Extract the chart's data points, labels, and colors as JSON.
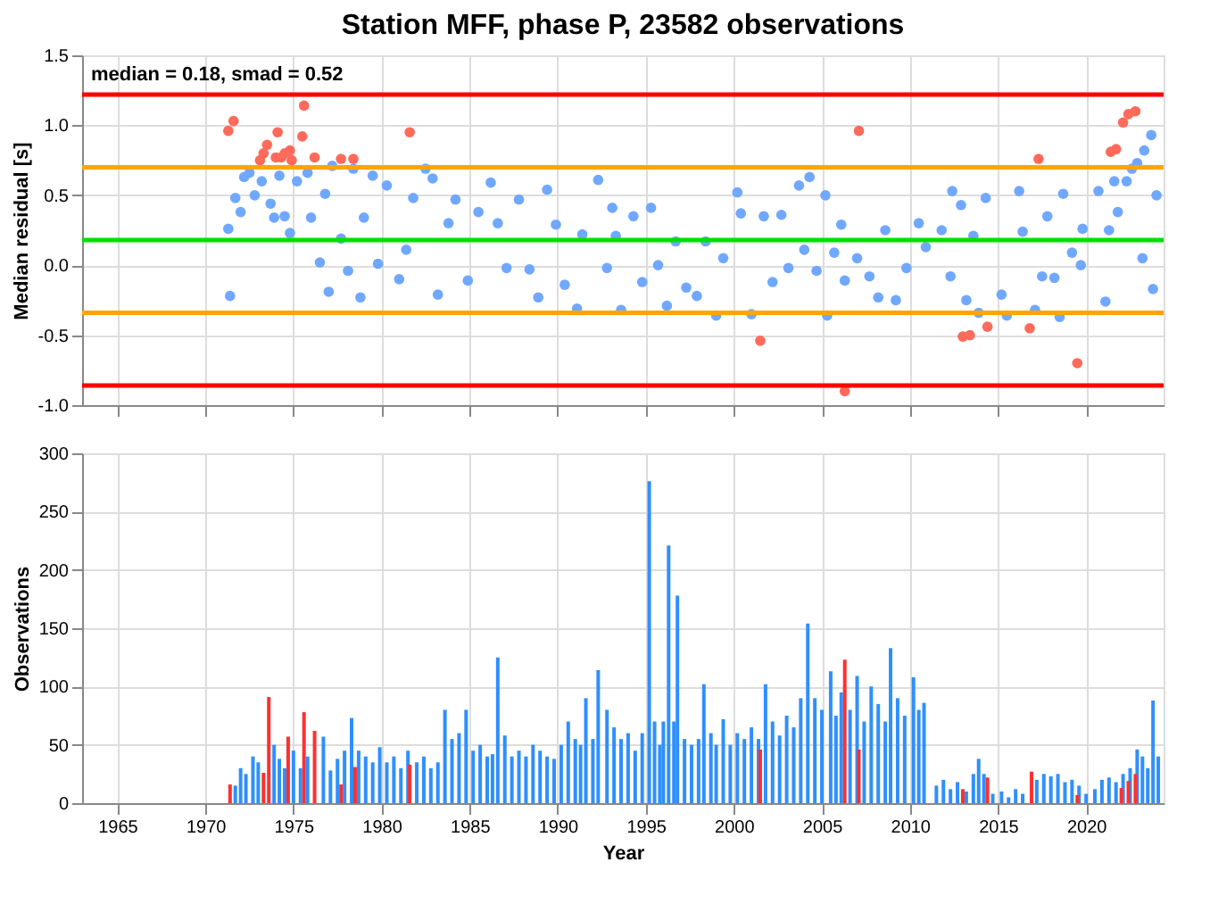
{
  "chart_data": [
    {
      "type": "scatter",
      "title": "Station MFF, phase P, 23582 observations",
      "ylabel": "Median residual [s]",
      "marker": "circle",
      "grid": true,
      "tick_labels": "y",
      "xlim": [
        1963,
        2024.4
      ],
      "ylim": [
        -1.0,
        1.5
      ],
      "xticks": [
        1965,
        1970,
        1975,
        1980,
        1985,
        1990,
        1995,
        2000,
        2005,
        2010,
        2015,
        2020
      ],
      "yticks": [
        {
          "value": -1.0,
          "label": "-1.0"
        },
        {
          "value": -0.5,
          "label": "-0.5"
        },
        {
          "value": 0,
          "label": "0.0"
        },
        {
          "value": 0.5,
          "label": "0.5"
        },
        {
          "value": 1.0,
          "label": "1.0"
        },
        {
          "value": 1.5,
          "label": "1.5"
        }
      ],
      "ref_lines": [
        {
          "axis": "y",
          "value": 1.22,
          "color": "#ff0000"
        },
        {
          "axis": "y",
          "value": 0.7,
          "color": "#ffa500"
        },
        {
          "axis": "y",
          "value": 0.18,
          "color": "#00e000"
        },
        {
          "axis": "y",
          "value": -0.34,
          "color": "#ffa500"
        },
        {
          "axis": "y",
          "value": -0.86,
          "color": "#ff0000"
        }
      ],
      "annotations": [
        "median = 0.18, smad = 0.52"
      ],
      "series": [
        {
          "color": "#70a8ff",
          "x": [
            1971.3,
            1971.4,
            1971.7,
            1972.0,
            1972.2,
            1972.5,
            1972.8,
            1973.2,
            1973.7,
            1973.9,
            1974.2,
            1974.5,
            1974.8,
            1975.2,
            1975.8,
            1976.0,
            1976.5,
            1976.8,
            1977.0,
            1977.2,
            1977.7,
            1978.1,
            1978.4,
            1978.8,
            1979.0,
            1979.5,
            1979.8,
            1980.3,
            1981.0,
            1981.4,
            1981.8,
            1982.5,
            1982.9,
            1983.2,
            1983.8,
            1984.2,
            1984.9,
            1985.5,
            1986.2,
            1986.6,
            1987.1,
            1987.8,
            1988.4,
            1988.9,
            1989.4,
            1989.9,
            1990.4,
            1991.1,
            1991.4,
            1992.3,
            1992.8,
            1993.1,
            1993.3,
            1993.6,
            1994.3,
            1994.8,
            1995.3,
            1995.7,
            1996.2,
            1996.7,
            1997.3,
            1997.9,
            1998.4,
            1999.0,
            1999.4,
            2000.2,
            2000.4,
            2001.0,
            2001.7,
            2002.2,
            2002.7,
            2003.1,
            2003.7,
            2004.0,
            2004.3,
            2004.7,
            2005.2,
            2005.3,
            2005.7,
            2006.1,
            2006.3,
            2007.0,
            2007.7,
            2008.2,
            2008.6,
            2009.2,
            2009.8,
            2010.5,
            2010.9,
            2011.8,
            2012.3,
            2012.4,
            2012.9,
            2013.2,
            2013.6,
            2013.9,
            2014.3,
            2015.2,
            2015.5,
            2016.2,
            2016.4,
            2017.1,
            2017.5,
            2017.8,
            2018.2,
            2018.5,
            2018.7,
            2019.2,
            2019.7,
            2019.8,
            2020.7,
            2021.1,
            2021.3,
            2021.6,
            2021.8,
            2022.3,
            2022.6,
            2022.9,
            2023.2,
            2023.3,
            2023.7,
            2023.8,
            2024.0
          ],
          "values": [
            0.26,
            -0.22,
            0.48,
            0.38,
            0.63,
            0.66,
            0.5,
            0.6,
            0.44,
            0.34,
            0.64,
            0.35,
            0.23,
            0.6,
            0.66,
            0.34,
            0.02,
            0.51,
            -0.19,
            0.71,
            0.19,
            -0.04,
            0.69,
            -0.23,
            0.34,
            0.64,
            0.01,
            0.57,
            -0.1,
            0.11,
            0.48,
            0.69,
            0.62,
            -0.21,
            0.3,
            0.47,
            -0.11,
            0.38,
            0.59,
            0.3,
            -0.02,
            0.47,
            -0.03,
            -0.23,
            0.54,
            0.29,
            -0.14,
            -0.31,
            0.22,
            0.61,
            -0.02,
            0.41,
            0.21,
            -0.32,
            0.35,
            -0.12,
            0.41,
            0.0,
            -0.29,
            0.17,
            -0.16,
            -0.22,
            0.17,
            -0.36,
            0.05,
            0.52,
            0.37,
            -0.35,
            0.35,
            -0.12,
            0.36,
            -0.02,
            0.57,
            0.11,
            0.63,
            -0.04,
            0.5,
            -0.36,
            0.09,
            0.29,
            -0.11,
            0.05,
            -0.08,
            -0.23,
            0.25,
            -0.25,
            -0.02,
            0.3,
            0.13,
            0.25,
            -0.08,
            0.53,
            0.43,
            -0.25,
            0.21,
            -0.34,
            0.48,
            -0.21,
            -0.36,
            0.53,
            0.24,
            -0.32,
            -0.08,
            0.35,
            -0.09,
            -0.37,
            0.51,
            0.09,
            0.0,
            0.26,
            0.53,
            -0.26,
            0.25,
            0.6,
            0.38,
            0.6,
            0.69,
            0.73,
            0.05,
            0.82,
            0.93,
            -0.17,
            0.5
          ]
        },
        {
          "color": "#ff6a5a",
          "x": [
            1971.3,
            1971.6,
            1973.1,
            1973.3,
            1973.5,
            1974.1,
            1974.0,
            1974.3,
            1974.5,
            1974.8,
            1974.9,
            1975.5,
            1975.6,
            1976.2,
            1977.7,
            1978.4,
            1981.6,
            2001.5,
            2007.1,
            2006.3,
            2013.0,
            2013.4,
            2014.4,
            2016.8,
            2017.3,
            2019.5,
            2021.4,
            2021.7,
            2022.1,
            2022.4,
            2022.8
          ],
          "values": [
            0.96,
            1.03,
            0.75,
            0.8,
            0.86,
            0.95,
            0.77,
            0.77,
            0.8,
            0.82,
            0.75,
            0.92,
            1.14,
            0.77,
            0.76,
            0.76,
            0.95,
            -0.54,
            0.96,
            -0.9,
            -0.51,
            -0.5,
            -0.44,
            -0.45,
            0.76,
            -0.7,
            0.81,
            0.83,
            1.02,
            1.08,
            1.1
          ]
        }
      ]
    },
    {
      "type": "bar",
      "xlabel": "Year",
      "ylabel": "Observations",
      "grid": true,
      "xlim": [
        1963,
        2024.4
      ],
      "ylim": [
        0,
        300
      ],
      "xticks": [
        1965,
        1970,
        1975,
        1980,
        1985,
        1990,
        1995,
        2000,
        2005,
        2010,
        2015,
        2020
      ],
      "yticks": [
        0,
        50,
        100,
        150,
        200,
        250,
        300
      ],
      "series": [
        {
          "color": "#2f8fff",
          "x": [
            1971.7,
            1972.0,
            1972.3,
            1972.7,
            1973.0,
            1973.4,
            1973.9,
            1974.2,
            1974.5,
            1975.0,
            1975.4,
            1975.8,
            1976.2,
            1976.7,
            1977.1,
            1977.5,
            1977.9,
            1978.3,
            1978.7,
            1979.1,
            1979.5,
            1979.9,
            1980.3,
            1980.7,
            1981.1,
            1981.5,
            1982.0,
            1982.4,
            1982.8,
            1983.2,
            1983.6,
            1984.0,
            1984.4,
            1984.8,
            1985.2,
            1985.6,
            1986.0,
            1986.3,
            1986.6,
            1987.0,
            1987.4,
            1987.8,
            1988.2,
            1988.6,
            1989.0,
            1989.4,
            1989.8,
            1990.2,
            1990.6,
            1991.0,
            1991.3,
            1991.6,
            1992.0,
            1992.3,
            1992.8,
            1993.2,
            1993.6,
            1994.0,
            1994.4,
            1994.8,
            1995.2,
            1995.5,
            1995.8,
            1996.0,
            1996.3,
            1996.6,
            1996.8,
            1997.2,
            1997.6,
            1998.0,
            1998.3,
            1998.7,
            1999.0,
            1999.4,
            1999.8,
            2000.2,
            2000.6,
            2001.0,
            2001.4,
            2001.8,
            2002.2,
            2002.6,
            2003.0,
            2003.4,
            2003.8,
            2004.2,
            2004.6,
            2005.0,
            2005.5,
            2005.8,
            2006.1,
            2006.6,
            2007.0,
            2007.4,
            2007.8,
            2008.2,
            2008.6,
            2008.9,
            2009.3,
            2009.7,
            2010.2,
            2010.5,
            2010.8,
            2011.5,
            2011.9,
            2012.3,
            2012.7,
            2013.2,
            2013.6,
            2013.9,
            2014.2,
            2014.7,
            2015.2,
            2015.6,
            2016.0,
            2016.4,
            2016.8,
            2017.2,
            2017.6,
            2018.0,
            2018.4,
            2018.8,
            2019.2,
            2019.6,
            2020.0,
            2020.5,
            2020.9,
            2021.3,
            2021.7,
            2022.1,
            2022.5,
            2022.9,
            2023.2,
            2023.5,
            2023.8,
            2024.1
          ],
          "values": [
            15,
            30,
            25,
            40,
            35,
            null,
            50,
            38,
            30,
            45,
            30,
            40,
            null,
            57,
            28,
            38,
            45,
            73,
            45,
            40,
            35,
            48,
            35,
            40,
            30,
            45,
            35,
            40,
            30,
            35,
            80,
            55,
            60,
            80,
            45,
            50,
            40,
            42,
            125,
            58,
            40,
            45,
            40,
            50,
            45,
            40,
            38,
            50,
            70,
            55,
            50,
            90,
            55,
            114,
            80,
            65,
            55,
            60,
            45,
            60,
            276,
            70,
            50,
            70,
            221,
            70,
            178,
            55,
            50,
            55,
            102,
            60,
            50,
            72,
            50,
            60,
            55,
            65,
            55,
            102,
            70,
            58,
            75,
            65,
            90,
            154,
            90,
            80,
            113,
            75,
            95,
            80,
            109,
            70,
            100,
            85,
            70,
            133,
            90,
            75,
            108,
            80,
            86,
            15,
            20,
            12,
            18,
            10,
            25,
            38,
            25,
            8,
            10,
            5,
            12,
            8,
            null,
            20,
            25,
            23,
            25,
            18,
            20,
            15,
            8,
            12,
            20,
            22,
            18,
            25,
            30,
            46,
            40,
            30,
            88,
            40
          ]
        },
        {
          "color": "#ff3030",
          "x": [
            1971.4,
            1973.3,
            1973.6,
            1974.7,
            1975.6,
            1976.2,
            1977.7,
            1978.5,
            1981.6,
            2001.5,
            2006.3,
            2007.1,
            2013.0,
            2014.4,
            2016.9,
            2019.5,
            2022.0,
            2022.4,
            2022.8
          ],
          "values": [
            16,
            26,
            91,
            57,
            78,
            62,
            16,
            31,
            33,
            46,
            123,
            46,
            12,
            22,
            27,
            7,
            13,
            19,
            25
          ]
        }
      ]
    }
  ]
}
